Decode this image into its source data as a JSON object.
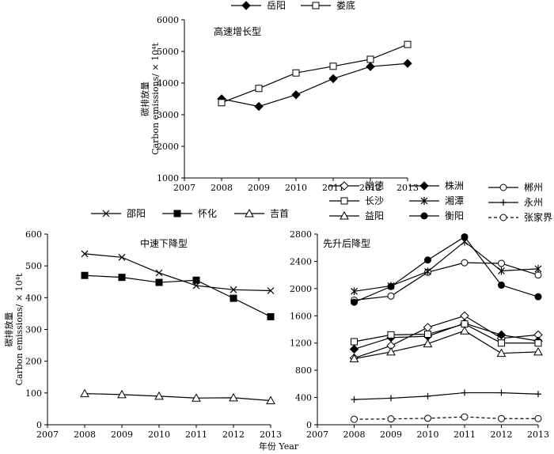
{
  "chart_data": [
    {
      "type": "line",
      "title": "高速增长型",
      "ylabel_cn": "碳排放量",
      "ylabel_en": "Carbon emissions/ × 10⁴t",
      "xlabel": "",
      "x_ticks": [
        "2007",
        "2008",
        "2009",
        "2010",
        "2011",
        "2012",
        "2013"
      ],
      "y_ticks": [
        "1000",
        "2000",
        "3000",
        "4000",
        "5000",
        "6000"
      ],
      "xlim": [
        2007,
        2013
      ],
      "ylim": [
        1000,
        6000
      ],
      "x": [
        2008,
        2009,
        2010,
        2011,
        2012,
        2013
      ],
      "series": [
        {
          "name": "岳阳",
          "marker": "diamond-filled",
          "values": [
            3500,
            3260,
            3630,
            4140,
            4520,
            4620
          ]
        },
        {
          "name": "娄底",
          "marker": "square-open",
          "values": [
            3380,
            3830,
            4320,
            4530,
            4750,
            5220
          ]
        }
      ]
    },
    {
      "type": "line",
      "title": "中速下降型",
      "ylabel_cn": "碳排放量",
      "ylabel_en": "Carbon emissions/ × 10⁴t",
      "xlabel": "",
      "x_ticks": [
        "2007",
        "2008",
        "2009",
        "2010",
        "2011",
        "2012",
        "2013"
      ],
      "y_ticks": [
        "0",
        "100",
        "200",
        "300",
        "400",
        "500",
        "600"
      ],
      "xlim": [
        2007,
        2013
      ],
      "ylim": [
        0,
        600
      ],
      "x": [
        2008,
        2009,
        2010,
        2011,
        2012,
        2013
      ],
      "series": [
        {
          "name": "邵阳",
          "marker": "x",
          "values": [
            538,
            527,
            478,
            438,
            425,
            422
          ]
        },
        {
          "name": "怀化",
          "marker": "square-filled",
          "values": [
            470,
            464,
            448,
            455,
            398,
            340
          ]
        },
        {
          "name": "吉首",
          "marker": "triangle-open",
          "values": [
            98,
            95,
            90,
            84,
            85,
            76
          ]
        }
      ]
    },
    {
      "type": "line",
      "title": "先升后降型",
      "xlabel": "年份 Year",
      "x_ticks": [
        "2007",
        "2008",
        "2009",
        "2010",
        "2011",
        "2012",
        "2013"
      ],
      "y_ticks": [
        "0",
        "400",
        "800",
        "1200",
        "1600",
        "2000",
        "2400",
        "2800"
      ],
      "xlim": [
        2007,
        2013
      ],
      "ylim": [
        0,
        2800
      ],
      "x": [
        2008,
        2009,
        2010,
        2011,
        2012,
        2013
      ],
      "series": [
        {
          "name": "常德",
          "marker": "diamond-open",
          "values": [
            980,
            1160,
            1430,
            1600,
            1270,
            1320
          ]
        },
        {
          "name": "株洲",
          "marker": "diamond-filled",
          "values": [
            1110,
            1280,
            1300,
            1490,
            1320,
            1230
          ]
        },
        {
          "name": "郴州",
          "marker": "circle-open",
          "values": [
            1830,
            1890,
            2240,
            2380,
            2370,
            2200
          ]
        },
        {
          "name": "长沙",
          "marker": "square-open",
          "values": [
            1220,
            1320,
            1330,
            1480,
            1200,
            1200
          ]
        },
        {
          "name": "湘潭",
          "marker": "star",
          "values": [
            1960,
            2040,
            2250,
            2690,
            2260,
            2290
          ]
        },
        {
          "name": "永州",
          "marker": "plus",
          "values": [
            370,
            390,
            420,
            470,
            470,
            450
          ]
        },
        {
          "name": "益阳",
          "marker": "triangle-open",
          "values": [
            970,
            1070,
            1190,
            1380,
            1050,
            1070
          ]
        },
        {
          "name": "衡阳",
          "marker": "circle-filled",
          "values": [
            1800,
            2030,
            2420,
            2760,
            2050,
            1880
          ]
        },
        {
          "name": "张家界",
          "marker": "circle-open",
          "dashed": true,
          "values": [
            80,
            85,
            95,
            115,
            90,
            90
          ]
        }
      ]
    }
  ]
}
